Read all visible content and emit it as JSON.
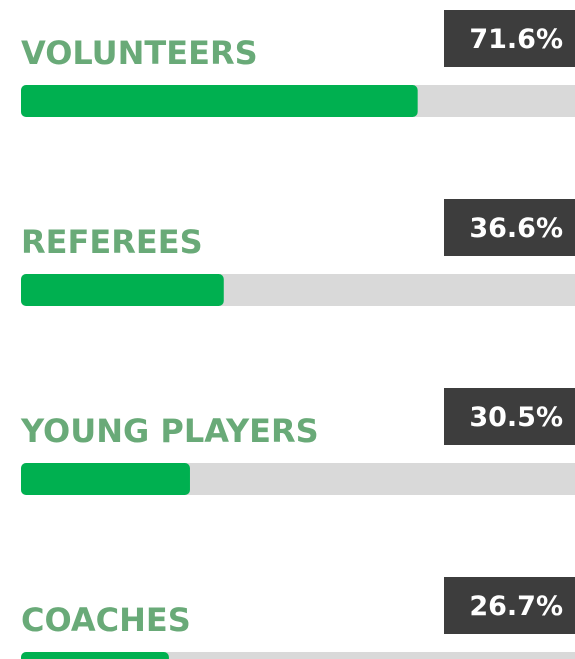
{
  "chart_data": {
    "type": "progress",
    "categories": [
      "VOLUNTEERS",
      "REFEREES",
      "YOUNG PLAYERS",
      "COACHES"
    ],
    "values": [
      71.6,
      36.6,
      30.5,
      26.7
    ],
    "value_labels": [
      "71.6%",
      "36.6%",
      "30.5%",
      "26.7%"
    ],
    "color": "#00b050",
    "track_color": "#d9d9d9",
    "label_color": "#69aa78",
    "badge_color": "#3d3d3d",
    "xlim": [
      0,
      100
    ]
  }
}
